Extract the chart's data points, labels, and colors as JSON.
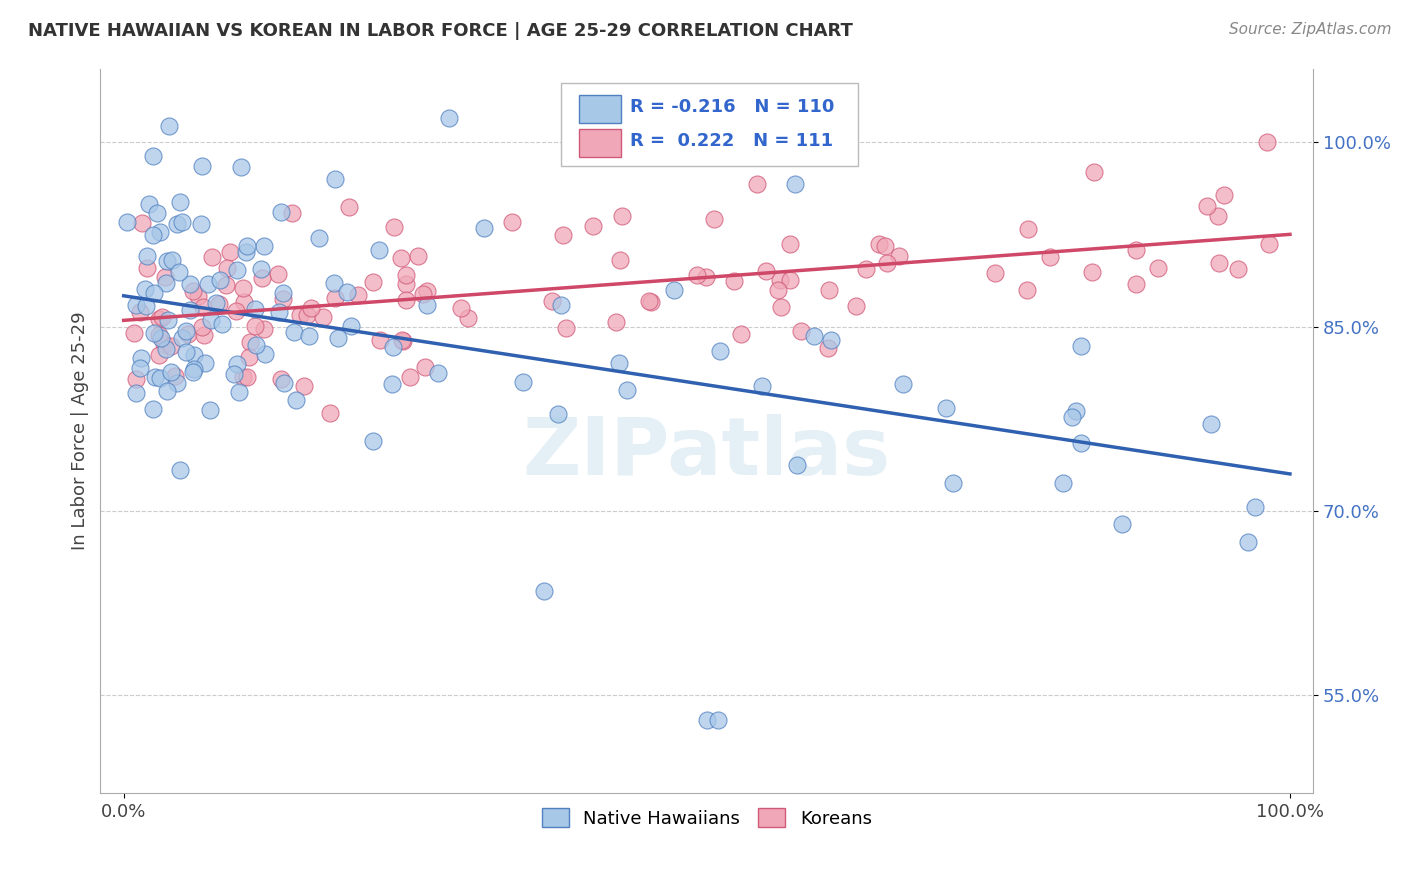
{
  "title": "NATIVE HAWAIIAN VS KOREAN IN LABOR FORCE | AGE 25-29 CORRELATION CHART",
  "source": "Source: ZipAtlas.com",
  "ylabel": "In Labor Force | Age 25-29",
  "blue_R": -0.216,
  "blue_N": 110,
  "pink_R": 0.222,
  "pink_N": 111,
  "blue_color": "#a8c8e8",
  "pink_color": "#f0a8b8",
  "blue_edge_color": "#5080c0",
  "pink_edge_color": "#d05878",
  "blue_line_color": "#3060b0",
  "pink_line_color": "#d04868",
  "watermark": "ZIPatlas",
  "xlim": [
    -0.02,
    1.02
  ],
  "ylim": [
    0.47,
    1.06
  ],
  "yticks": [
    0.55,
    0.7,
    0.85,
    1.0
  ],
  "ytick_labels": [
    "55.0%",
    "70.0%",
    "85.0%",
    "100.0%"
  ],
  "xtick_labels": [
    "0.0%",
    "100.0%"
  ],
  "blue_line_x0": 0.0,
  "blue_line_y0": 0.875,
  "blue_line_x1": 1.0,
  "blue_line_y1": 0.73,
  "pink_line_x0": 0.0,
  "pink_line_y0": 0.855,
  "pink_line_x1": 1.0,
  "pink_line_y1": 0.925,
  "background_color": "#ffffff",
  "grid_color": "#cccccc",
  "legend_label_blue": "Native Hawaiians",
  "legend_label_pink": "Koreans",
  "title_fontsize": 13,
  "source_fontsize": 11,
  "tick_fontsize": 13,
  "ylabel_fontsize": 13
}
